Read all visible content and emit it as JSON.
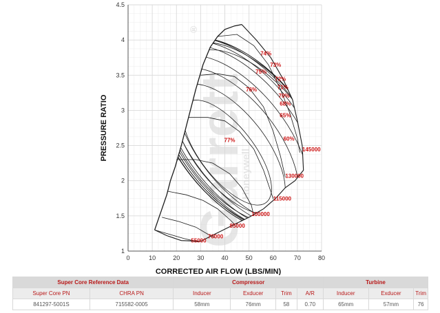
{
  "chart_data": {
    "type": "compressor-map",
    "xlabel": "CORRECTED AIR FLOW (LBS/MIN)",
    "ylabel": "PRESSURE RATIO",
    "xlim": [
      0,
      80
    ],
    "ylim": [
      1,
      4.5
    ],
    "x_ticks": [
      "0",
      "10",
      "20",
      "30",
      "40",
      "50",
      "60",
      "70",
      "80"
    ],
    "y_ticks": [
      "1",
      "1.5",
      "2",
      "2.5",
      "3",
      "3.5",
      "4",
      "4.5"
    ],
    "grid": true,
    "surge_line": [
      [
        11,
        1.3
      ],
      [
        14,
        1.6
      ],
      [
        16,
        1.8
      ],
      [
        17.5,
        2.0
      ],
      [
        19.5,
        2.2
      ],
      [
        22,
        2.5
      ],
      [
        25,
        2.9
      ],
      [
        28,
        3.3
      ],
      [
        31,
        3.65
      ],
      [
        34,
        3.9
      ],
      [
        37,
        4.05
      ],
      [
        40,
        4.15
      ],
      [
        44,
        4.2
      ],
      [
        47,
        4.22
      ]
    ],
    "choke_line": [
      [
        47,
        4.22
      ],
      [
        53,
        4.0
      ],
      [
        59,
        3.75
      ],
      [
        64,
        3.45
      ],
      [
        68,
        3.15
      ],
      [
        70,
        2.85
      ],
      [
        72,
        2.5
      ],
      [
        72.5,
        2.15
      ],
      [
        69,
        2.0
      ],
      [
        65,
        1.9
      ],
      [
        61,
        1.75
      ],
      [
        56,
        1.6
      ],
      [
        50,
        1.48
      ],
      [
        44,
        1.38
      ],
      [
        37,
        1.26
      ],
      [
        30,
        1.14
      ],
      [
        22,
        1.15
      ],
      [
        16,
        1.22
      ],
      [
        11,
        1.3
      ]
    ],
    "speed_lines": [
      {
        "label": "55000",
        "label_at": [
          26,
          1.12
        ],
        "points": [
          [
            11,
            1.3
          ],
          [
            17,
            1.24
          ],
          [
            23,
            1.18
          ],
          [
            29,
            1.13
          ]
        ]
      },
      {
        "label": "70000",
        "label_at": [
          33,
          1.18
        ],
        "points": [
          [
            14,
            1.48
          ],
          [
            21,
            1.42
          ],
          [
            28,
            1.34
          ],
          [
            33,
            1.24
          ],
          [
            36,
            1.19
          ]
        ]
      },
      {
        "label": "85000",
        "label_at": [
          42,
          1.33
        ],
        "points": [
          [
            16.5,
            1.85
          ],
          [
            24,
            1.8
          ],
          [
            31,
            1.72
          ],
          [
            37,
            1.6
          ],
          [
            42,
            1.45
          ],
          [
            44,
            1.38
          ]
        ]
      },
      {
        "label": "100000",
        "label_at": [
          51,
          1.5
        ],
        "points": [
          [
            20,
            2.3
          ],
          [
            28,
            2.3
          ],
          [
            35,
            2.25
          ],
          [
            42,
            2.1
          ],
          [
            47,
            1.9
          ],
          [
            51,
            1.65
          ],
          [
            52,
            1.5
          ]
        ]
      },
      {
        "label": "115000",
        "label_at": [
          60,
          1.72
        ],
        "points": [
          [
            25,
            2.9
          ],
          [
            33,
            2.9
          ],
          [
            40,
            2.85
          ],
          [
            46,
            2.7
          ],
          [
            52,
            2.45
          ],
          [
            56,
            2.15
          ],
          [
            59,
            1.85
          ],
          [
            60,
            1.74
          ]
        ]
      },
      {
        "label": "130000",
        "label_at": [
          65,
          2.04
        ],
        "points": [
          [
            30,
            3.5
          ],
          [
            37,
            3.52
          ],
          [
            44,
            3.48
          ],
          [
            50,
            3.32
          ],
          [
            56,
            3.05
          ],
          [
            60,
            2.7
          ],
          [
            63,
            2.35
          ],
          [
            65,
            2.05
          ]
        ]
      },
      {
        "label": "145000",
        "label_at": [
          72,
          2.42
        ],
        "points": [
          [
            37,
            4.05
          ],
          [
            45,
            4.08
          ],
          [
            52,
            3.92
          ],
          [
            58,
            3.65
          ],
          [
            63,
            3.3
          ],
          [
            67,
            2.95
          ],
          [
            70,
            2.6
          ],
          [
            71,
            2.4
          ]
        ]
      }
    ],
    "efficiency_islands": [
      {
        "label": "77%",
        "label_at": [
          42,
          2.55
        ],
        "center": [
          41,
          2.4
        ],
        "rx": 11,
        "ry": 0.9
      },
      {
        "label": "76%",
        "label_at": [
          51,
          3.27
        ],
        "center": [
          42,
          2.45
        ],
        "rx": 15,
        "ry": 1.1
      },
      {
        "label": "75%",
        "label_at": [
          55,
          3.52
        ],
        "center": [
          43,
          2.5
        ],
        "rx": 19,
        "ry": 1.3
      },
      {
        "label": "74%",
        "label_at": [
          57,
          3.78
        ],
        "center": [
          44,
          2.55
        ],
        "rx": 22,
        "ry": 1.45
      },
      {
        "label": "73%",
        "label_at": [
          61,
          3.62
        ],
        "center": [
          45,
          2.6
        ],
        "rx": 24.5,
        "ry": 1.55
      },
      {
        "label": "72%",
        "label_at": [
          63,
          3.42
        ],
        "center": [
          46,
          2.62
        ],
        "rx": 25.5,
        "ry": 1.6
      },
      {
        "label": "71%",
        "label_at": [
          64,
          3.3
        ],
        "center": [
          47,
          2.64
        ],
        "rx": 26,
        "ry": 1.62
      },
      {
        "label": "70%",
        "label_at": [
          64.5,
          3.18
        ],
        "center": [
          48,
          2.64
        ],
        "rx": 26,
        "ry": 1.62
      },
      {
        "label": "68%",
        "label_at": [
          65,
          3.07
        ],
        "center": [
          49,
          2.64
        ],
        "rx": 25.5,
        "ry": 1.6
      },
      {
        "label": "65%",
        "label_at": [
          65,
          2.9
        ],
        "center": [
          50,
          2.64
        ],
        "rx": 24.5,
        "ry": 1.55
      },
      {
        "label": "60%",
        "label_at": [
          66.5,
          2.57
        ],
        "center": [
          51,
          2.62
        ],
        "rx": 23,
        "ry": 1.45
      }
    ],
    "colors": {
      "lines": "#1a1a1a",
      "labels": "#cc1111",
      "grid": "#d9d9d9",
      "watermark": "#d8d8d8"
    }
  },
  "watermark": {
    "text": "Garrett",
    "sub": "Honeywell",
    "mark": "®"
  },
  "spec_table": {
    "groups": {
      "super_core": "Super Core Reference Data",
      "compressor": "Compressor",
      "turbine": "Turbine"
    },
    "headers": {
      "super_core_pn": "Super Core PN",
      "chra_pn": "CHRA PN",
      "comp_inducer": "Inducer",
      "comp_exducer": "Exducer",
      "comp_trim": "Trim",
      "comp_ar": "A/R",
      "turb_inducer": "Inducer",
      "turb_exducer": "Exducer",
      "turb_trim": "Trim"
    },
    "values": {
      "super_core_pn": "841297-5001S",
      "chra_pn": "715582-0005",
      "comp_inducer": "58mm",
      "comp_exducer": "76mm",
      "comp_trim": "58",
      "comp_ar": "0.70",
      "turb_inducer": "65mm",
      "turb_exducer": "57mm",
      "turb_trim": "76"
    }
  }
}
